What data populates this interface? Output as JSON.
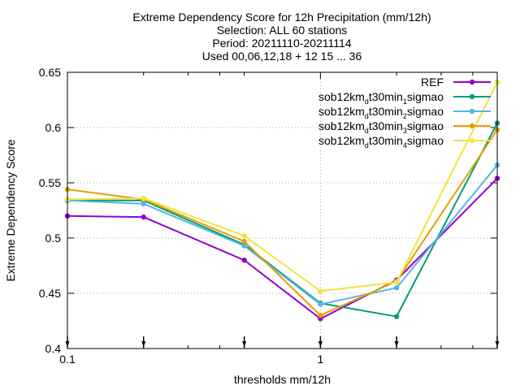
{
  "chart_data": {
    "type": "line",
    "title_lines": [
      "Extreme Dependency Score  for 12h Precipitation (mm/12h)",
      "Selection: ALL     60 stations",
      "Period: 20211110-20211114",
      "Used 00,06,12,18 + 12 15 ... 36"
    ],
    "xlabel": "thresholds mm/12h",
    "ylabel": "Extreme Dependency Score",
    "x_scale": "log",
    "xlim": [
      0.1,
      5
    ],
    "ylim": [
      0.4,
      0.65
    ],
    "x_ticks": [
      {
        "value": 0.1,
        "label": "0.1"
      },
      {
        "value": 1,
        "label": "1"
      }
    ],
    "y_ticks": [
      {
        "value": 0.4,
        "label": "0.4"
      },
      {
        "value": 0.45,
        "label": "0.45"
      },
      {
        "value": 0.5,
        "label": "0.5"
      },
      {
        "value": 0.55,
        "label": "0.55"
      },
      {
        "value": 0.6,
        "label": "0.6"
      },
      {
        "value": 0.65,
        "label": "0.65"
      }
    ],
    "grid": true,
    "legend_position": "top-right",
    "x": [
      0.1,
      0.2,
      0.5,
      1,
      2,
      5
    ],
    "series": [
      {
        "name": "REF",
        "legend": {
          "main": "REF"
        },
        "color": "#9400d3",
        "values": [
          0.52,
          0.519,
          0.48,
          0.427,
          0.462,
          0.554
        ]
      },
      {
        "name": "sob12km_dt30min_1sigmao",
        "legend": {
          "main": "sob12km",
          "sub1": "d",
          "mid": "t30min",
          "sub2": "1",
          "end": "sigmao"
        },
        "color": "#009e73",
        "values": [
          0.534,
          0.534,
          0.494,
          0.441,
          0.429,
          0.604
        ]
      },
      {
        "name": "sob12km_dt30min_2sigmao",
        "legend": {
          "main": "sob12km",
          "sub1": "d",
          "mid": "t30min",
          "sub2": "2",
          "end": "sigmao"
        },
        "color": "#56b4e9",
        "values": [
          0.534,
          0.531,
          0.493,
          0.44,
          0.455,
          0.566
        ]
      },
      {
        "name": "sob12km_dt30min_3sigmao",
        "legend": {
          "main": "sob12km",
          "sub1": "d",
          "mid": "t30min",
          "sub2": "3",
          "end": "sigmao"
        },
        "color": "#e69f00",
        "values": [
          0.544,
          0.535,
          0.497,
          0.43,
          0.461,
          0.598
        ]
      },
      {
        "name": "sob12km_dt30min_4sigmao",
        "legend": {
          "main": "sob12km",
          "sub1": "d",
          "mid": "t30min",
          "sub2": "4",
          "end": "sigmao"
        },
        "color": "#f0e442",
        "values": [
          0.535,
          0.536,
          0.502,
          0.452,
          0.46,
          0.641
        ]
      }
    ],
    "bottom_markers_x": [
      0.1,
      0.2,
      0.5,
      1,
      2,
      5
    ]
  }
}
